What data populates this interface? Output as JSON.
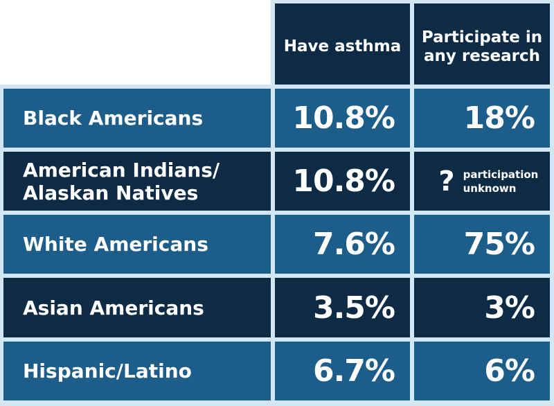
{
  "header": {
    "col1": "Have asthma",
    "col2": "Participate in any research"
  },
  "rows": [
    {
      "group": "Black Americans",
      "asthma": "10.8%",
      "research": "18%"
    },
    {
      "group": "American Indians/ Alaskan Natives",
      "asthma": "10.8%",
      "research_icon": "?",
      "research_note": "participation unknown"
    },
    {
      "group": "White Americans",
      "asthma": "7.6%",
      "research": "75%"
    },
    {
      "group": "Asian Americans",
      "asthma": "3.5%",
      "research": "3%"
    },
    {
      "group": "Hispanic/Latino",
      "asthma": "6.7%",
      "research": "6%"
    }
  ],
  "colors": {
    "light_row": "#1d5d89",
    "dark_row": "#0e2b45",
    "grid_lines": "#d3e6f4",
    "text": "#ffffff"
  }
}
